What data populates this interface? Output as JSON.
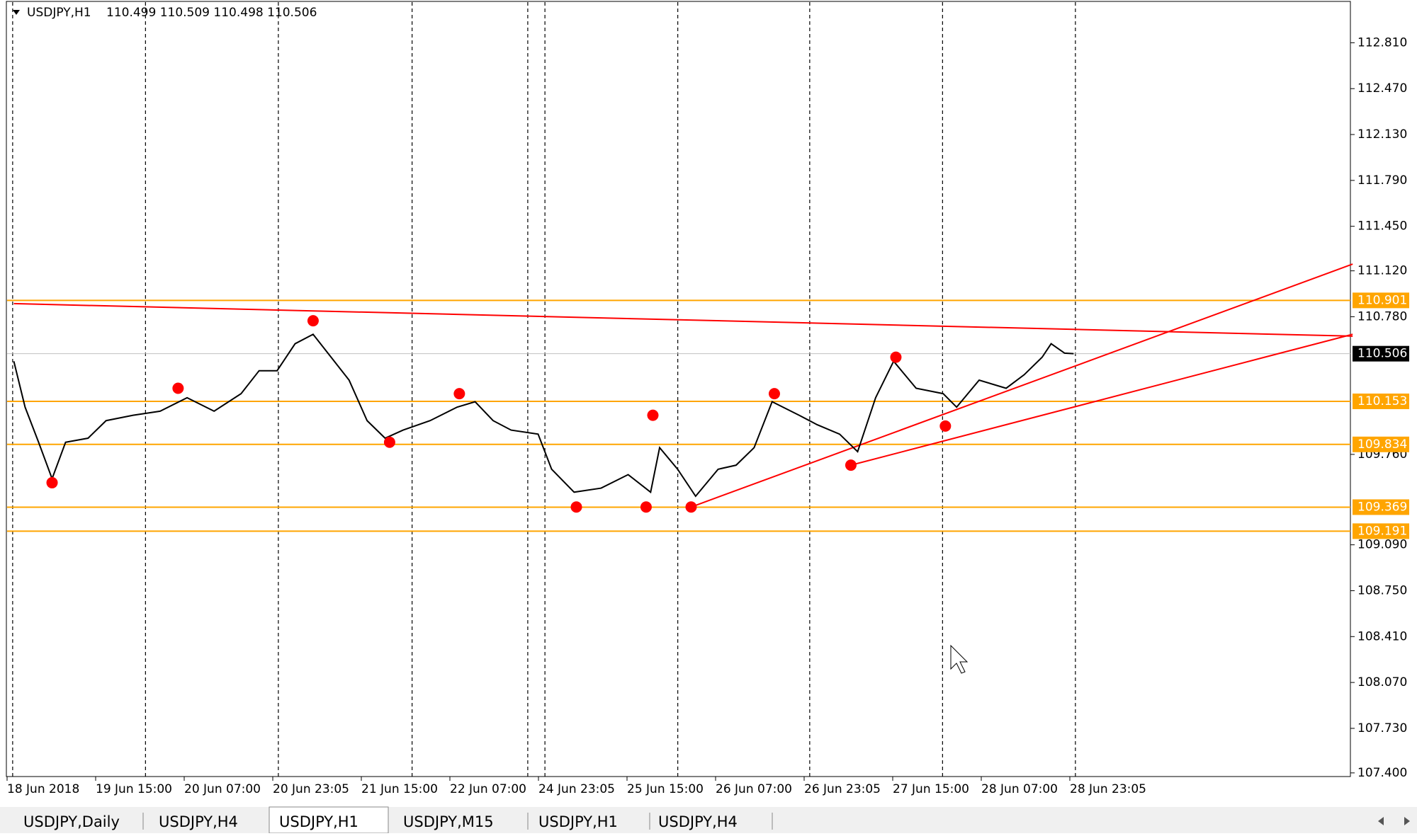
{
  "header": {
    "symbol": "USDJPY,H1",
    "ohlc": "110.499 110.509 110.498 110.506"
  },
  "chart_data": {
    "type": "line",
    "x": [
      3,
      8,
      14,
      20,
      26,
      36,
      44,
      56,
      68,
      80,
      92,
      104,
      112,
      120,
      128,
      136,
      144,
      152,
      160,
      168,
      176,
      188,
      200,
      208,
      216,
      224,
      236,
      242,
      252,
      264,
      276,
      286,
      290,
      298,
      306,
      316,
      324,
      332,
      340,
      352,
      360,
      370,
      378,
      386,
      394,
      404,
      416,
      422,
      432,
      444,
      452,
      460,
      464,
      470,
      474
    ],
    "series": [
      {
        "name": "USDJPY",
        "color": "#000000",
        "values": [
          110.45,
          110.11,
          109.85,
          109.58,
          109.85,
          109.88,
          110.01,
          110.05,
          110.08,
          110.18,
          110.08,
          110.21,
          110.38,
          110.38,
          110.58,
          110.65,
          110.48,
          110.31,
          110.01,
          109.88,
          109.94,
          110.01,
          110.11,
          110.15,
          110.01,
          109.94,
          109.91,
          109.65,
          109.48,
          109.51,
          109.61,
          109.48,
          109.81,
          109.65,
          109.45,
          109.65,
          109.68,
          109.81,
          110.15,
          110.05,
          109.98,
          109.91,
          109.78,
          110.18,
          110.45,
          110.25,
          110.21,
          110.11,
          110.31,
          110.25,
          110.35,
          110.48,
          110.58,
          110.51,
          110.506
        ]
      }
    ],
    "swings": {
      "color": "#ff0000",
      "x": [
        20,
        76,
        136,
        170,
        201,
        253,
        284,
        287,
        304,
        341,
        375,
        395,
        417
      ],
      "values": [
        109.55,
        110.25,
        110.75,
        109.85,
        110.21,
        109.37,
        109.37,
        110.05,
        109.37,
        110.21,
        109.68,
        110.48,
        109.97
      ]
    },
    "trendlines": {
      "color": "#ff0000",
      "lines": [
        [
          3,
          110.877,
          598,
          110.636
        ],
        [
          304,
          109.37,
          598,
          111.17
        ],
        [
          375,
          109.68,
          598,
          110.65
        ]
      ]
    },
    "levels": [
      {
        "value": 110.901,
        "label": "110.901"
      },
      {
        "value": 110.153,
        "label": "110.153"
      },
      {
        "value": 109.834,
        "label": "109.834"
      },
      {
        "value": 109.369,
        "label": "109.369"
      },
      {
        "value": 109.191,
        "label": "109.191"
      }
    ],
    "level_color": "#ffa500",
    "current": {
      "value": 110.506,
      "label": "110.506"
    },
    "xlim": [
      0,
      597
    ],
    "ylim": [
      107.373,
      113.111
    ],
    "yticks": [
      {
        "value": 112.81,
        "label": "112.810"
      },
      {
        "value": 112.47,
        "label": "112.470"
      },
      {
        "value": 112.13,
        "label": "112.130"
      },
      {
        "value": 111.79,
        "label": "111.790"
      },
      {
        "value": 111.45,
        "label": "111.450"
      },
      {
        "value": 111.12,
        "label": "111.120"
      },
      {
        "value": 110.78,
        "label": "110.780"
      },
      {
        "value": 109.76,
        "label": "109.760"
      },
      {
        "value": 109.09,
        "label": "109.090"
      },
      {
        "value": 108.75,
        "label": "108.750"
      },
      {
        "value": 108.41,
        "label": "108.410"
      },
      {
        "value": 108.07,
        "label": "108.070"
      },
      {
        "value": 107.73,
        "label": "107.730"
      },
      {
        "value": 107.4,
        "label": "107.400"
      }
    ],
    "categories": [
      "18 Jun 2018",
      "19 Jun 15:00",
      "20 Jun 07:00",
      "20 Jun 23:05",
      "21 Jun 15:00",
      "22 Jun 07:00",
      "24 Jun 23:05",
      "25 Jun 15:00",
      "26 Jun 07:00",
      "26 Jun 23:05",
      "27 Jun 15:00",
      "28 Jun 07:00",
      "28 Jun 23:05"
    ]
  },
  "tabs": [
    "USDJPY,Daily",
    "USDJPY,H4",
    "USDJPY,H1",
    "USDJPY,M15",
    "USDJPY,H1",
    "USDJPY,H4"
  ]
}
